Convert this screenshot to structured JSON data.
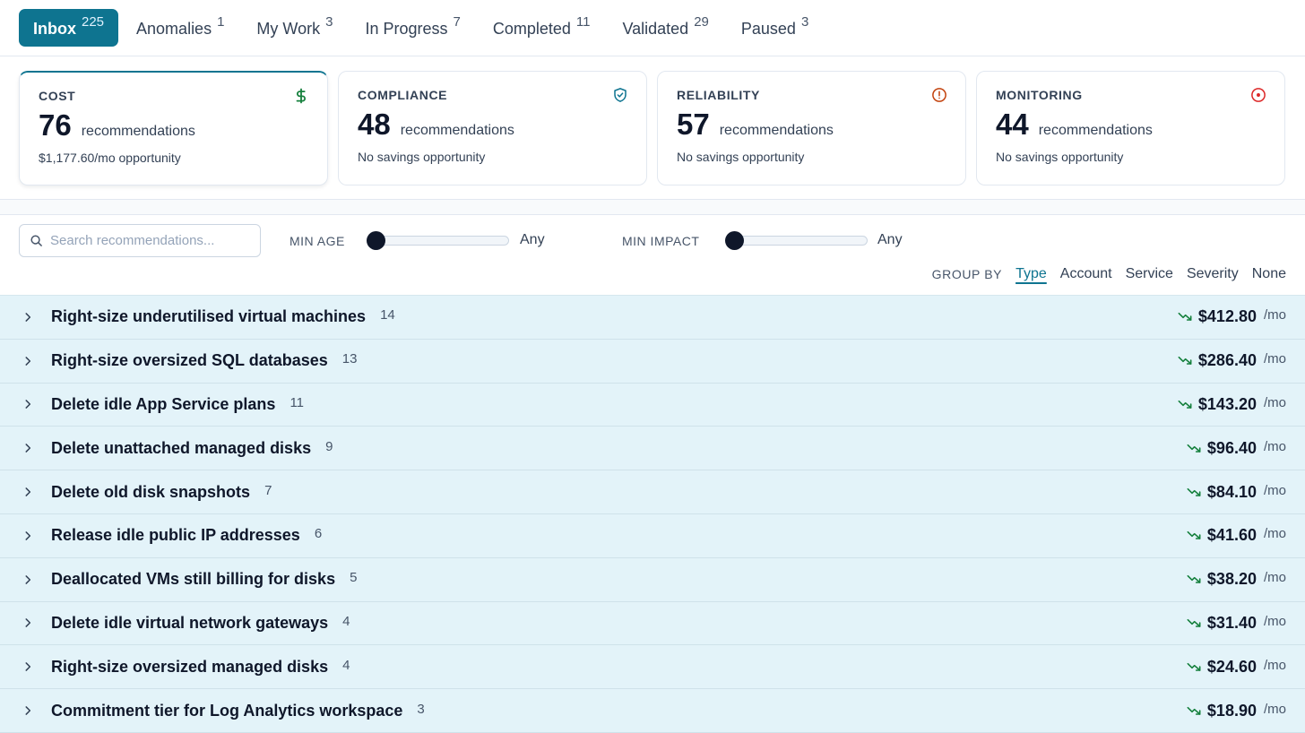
{
  "tabs": [
    {
      "label": "Inbox",
      "count": "225",
      "active": true
    },
    {
      "label": "Anomalies",
      "count": "1"
    },
    {
      "label": "My Work",
      "count": "3"
    },
    {
      "label": "In Progress",
      "count": "7"
    },
    {
      "label": "Completed",
      "count": "11"
    },
    {
      "label": "Validated",
      "count": "29"
    },
    {
      "label": "Paused",
      "count": "3"
    }
  ],
  "cards": [
    {
      "title": "COST",
      "count": "76",
      "unit": "recommendations",
      "sub": "$1,177.60/mo opportunity",
      "icon": "dollar-icon",
      "color": "#15803d"
    },
    {
      "title": "COMPLIANCE",
      "count": "48",
      "unit": "recommendations",
      "sub": "No savings opportunity",
      "icon": "shield-check-icon",
      "color": "#0e7490"
    },
    {
      "title": "RELIABILITY",
      "count": "57",
      "unit": "recommendations",
      "sub": "No savings opportunity",
      "icon": "alert-circle-icon",
      "color": "#c2410c"
    },
    {
      "title": "MONITORING",
      "count": "44",
      "unit": "recommendations",
      "sub": "No savings opportunity",
      "icon": "target-icon",
      "color": "#dc2626"
    }
  ],
  "filters": {
    "search_placeholder": "Search recommendations...",
    "min_age_label": "MIN AGE",
    "min_age_value": "Any",
    "min_impact_label": "MIN IMPACT",
    "min_impact_value": "Any",
    "group_by_label": "GROUP BY",
    "group_by_options": [
      "Type",
      "Account",
      "Service",
      "Severity",
      "None"
    ],
    "group_by_selected": "Type"
  },
  "rows": [
    {
      "title": "Right-size underutilised virtual machines",
      "count": "14",
      "amount": "$412.80",
      "per": "/mo"
    },
    {
      "title": "Right-size oversized SQL databases",
      "count": "13",
      "amount": "$286.40",
      "per": "/mo"
    },
    {
      "title": "Delete idle App Service plans",
      "count": "11",
      "amount": "$143.20",
      "per": "/mo"
    },
    {
      "title": "Delete unattached managed disks",
      "count": "9",
      "amount": "$96.40",
      "per": "/mo"
    },
    {
      "title": "Delete old disk snapshots",
      "count": "7",
      "amount": "$84.10",
      "per": "/mo"
    },
    {
      "title": "Release idle public IP addresses",
      "count": "6",
      "amount": "$41.60",
      "per": "/mo"
    },
    {
      "title": "Deallocated VMs still billing for disks",
      "count": "5",
      "amount": "$38.20",
      "per": "/mo"
    },
    {
      "title": "Delete idle virtual network gateways",
      "count": "4",
      "amount": "$31.40",
      "per": "/mo"
    },
    {
      "title": "Right-size oversized managed disks",
      "count": "4",
      "amount": "$24.60",
      "per": "/mo"
    },
    {
      "title": "Commitment tier for Log Analytics workspace",
      "count": "3",
      "amount": "$18.90",
      "per": "/mo"
    }
  ],
  "colors": {
    "accent": "#0e7490",
    "savings": "#15803d"
  }
}
